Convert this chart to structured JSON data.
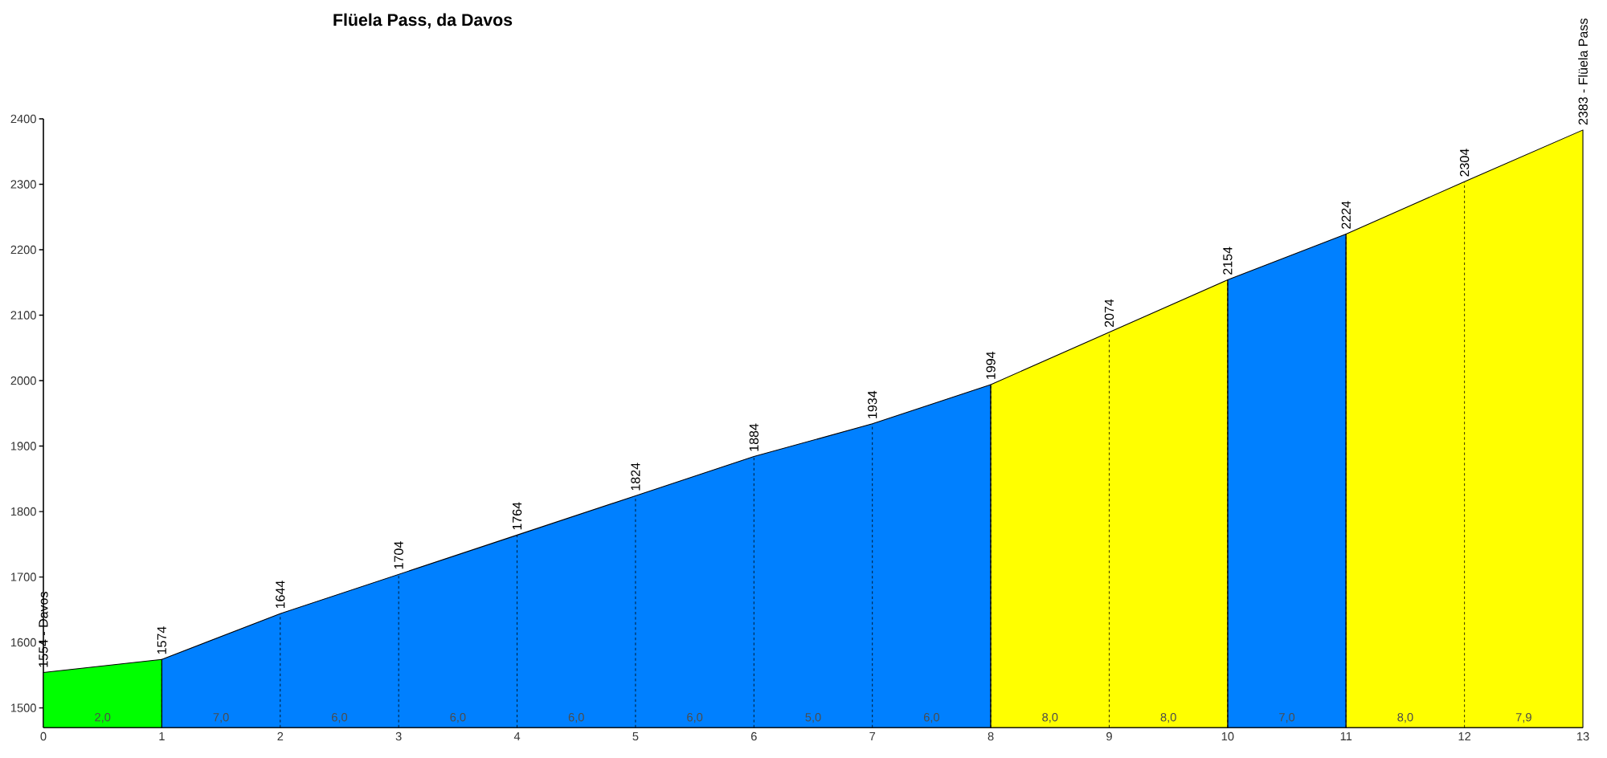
{
  "chart_data": {
    "type": "area",
    "title": "Flüela Pass, da Davos",
    "series": [
      {
        "color": "#00ff00",
        "x": [
          0,
          1
        ],
        "values": [
          1554,
          1574
        ]
      },
      {
        "color": "#0080ff",
        "x": [
          1,
          2,
          3,
          4,
          5,
          6,
          7,
          8,
          9,
          10,
          11
        ],
        "values": [
          1574,
          1644,
          1704,
          1764,
          1824,
          1884,
          1934,
          1994,
          null,
          2154,
          2224
        ]
      },
      {
        "color": "#ffff00",
        "x": [
          8,
          9,
          10,
          10.5,
          11,
          12,
          13
        ],
        "values": [
          1994,
          2074,
          2154,
          null,
          2224,
          2304,
          2383
        ]
      }
    ],
    "xlim": [
      0,
      13
    ],
    "xticks": [
      0,
      1,
      2,
      3,
      4,
      5,
      6,
      7,
      8,
      9,
      10,
      11,
      12,
      13
    ],
    "ylim": [
      1470,
      2400
    ],
    "yticks": [
      1500,
      1600,
      1700,
      1800,
      1900,
      2000,
      2100,
      2200,
      2300,
      2400
    ],
    "grid": "x",
    "annotations": [
      {
        "text": "1554 - Davos",
        "x": 0,
        "y": 1554
      },
      {
        "text": "1574",
        "x": 1,
        "y": 1574
      },
      {
        "text": "1644",
        "x": 2,
        "y": 1644
      },
      {
        "text": "1704",
        "x": 3,
        "y": 1704
      },
      {
        "text": "1764",
        "x": 4,
        "y": 1764
      },
      {
        "text": "1824",
        "x": 5,
        "y": 1824
      },
      {
        "text": "1884",
        "x": 6,
        "y": 1884
      },
      {
        "text": "1934",
        "x": 7,
        "y": 1934
      },
      {
        "text": "1994",
        "x": 8,
        "y": 1994
      },
      {
        "text": "2074",
        "x": 9,
        "y": 2074
      },
      {
        "text": "2154",
        "x": 10,
        "y": 2154
      },
      {
        "text": "2224",
        "x": 11,
        "y": 2224
      },
      {
        "text": "2304",
        "x": 12,
        "y": 2304
      },
      {
        "text": "2383 - Flüela Pass",
        "x": 13,
        "y": 2383
      },
      "2,0",
      "7,0",
      "6,0",
      "6,0",
      "6,0",
      "6,0",
      "5,0",
      "6,0",
      "8,0",
      "8,0",
      "7,0",
      "8,0",
      "7,9"
    ]
  }
}
